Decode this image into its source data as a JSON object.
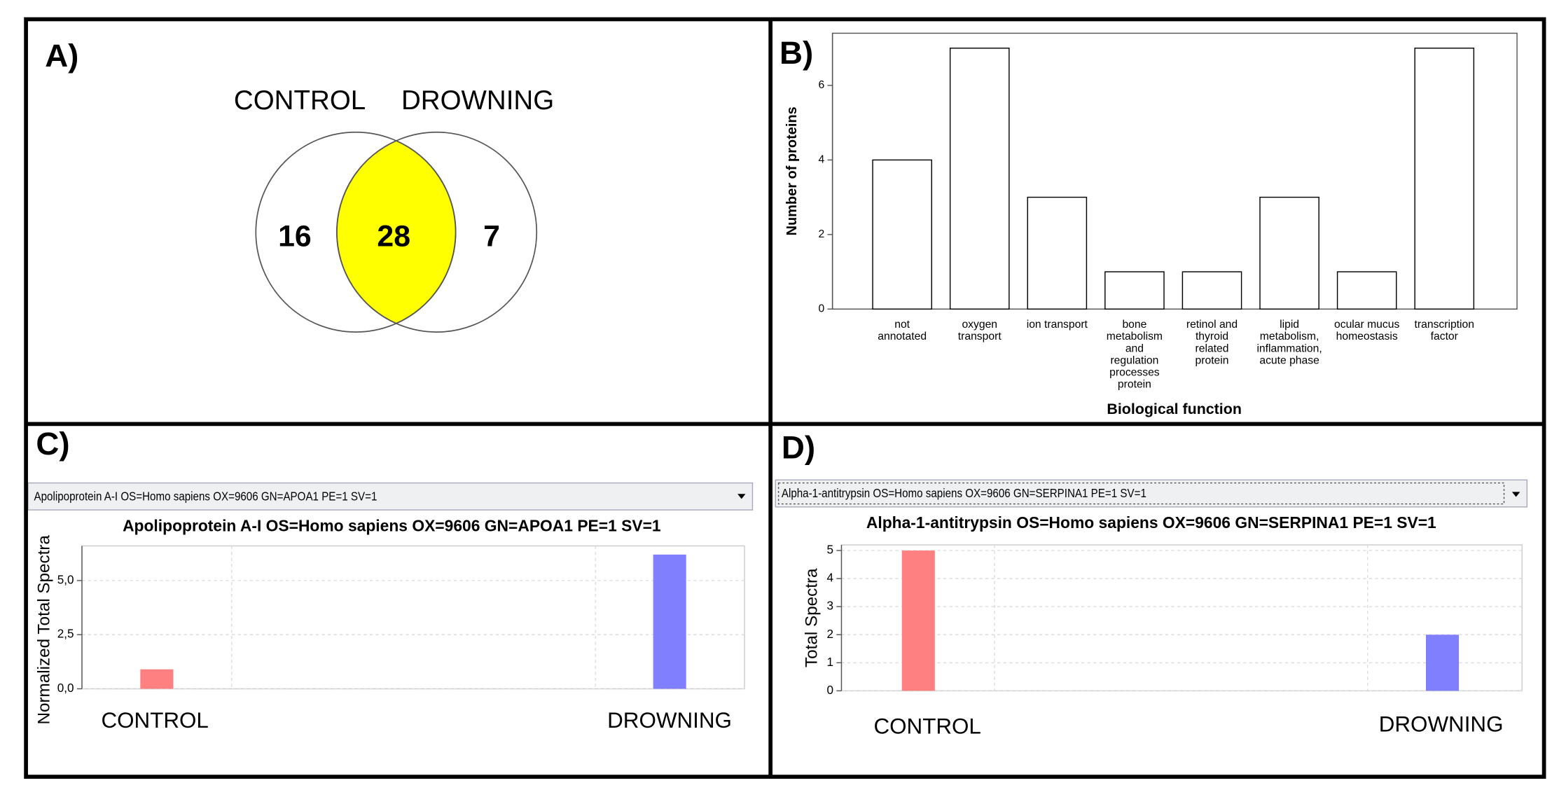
{
  "chart_data": [
    {
      "type": "venn",
      "label": "A)",
      "sets": [
        "CONTROL",
        "DROWNING"
      ],
      "values": [
        16,
        28,
        7
      ],
      "color": "#ffff00"
    },
    {
      "type": "bar",
      "label": "B)",
      "ylabel": "Number of proteins",
      "xlabel": "Biological function",
      "categories": [
        [
          "not",
          "annotated"
        ],
        [
          "oxygen",
          "transport"
        ],
        [
          "ion transport"
        ],
        [
          "bone",
          "metabolism",
          "and",
          "regulation",
          "processes",
          "protein"
        ],
        [
          "retinol and",
          "thyroid",
          "related",
          "protein"
        ],
        [
          "lipid",
          "metabolism,",
          "inflammation,",
          "acute phase"
        ],
        [
          "ocular mucus",
          "homeostasis"
        ],
        [
          "transcription",
          "factor"
        ]
      ],
      "values": [
        4,
        7,
        3,
        1,
        1,
        3,
        1,
        7
      ],
      "color": "#ffffff",
      "ylim": [
        0,
        7.4
      ],
      "yticks": [
        0,
        2,
        4,
        6
      ],
      "grid": false
    },
    {
      "type": "bar",
      "label": "C)",
      "selector": "Apolipoprotein A-I OS=Homo sapiens OX=9606 GN=APOA1 PE=1 SV=1",
      "title": "Apolipoprotein A-I OS=Homo sapiens OX=9606 GN=APOA1 PE=1 SV=1",
      "ylabel": "Normalized Total Spectra",
      "categories": [
        "CONTROL",
        "DROWNING"
      ],
      "values": [
        0.9,
        6.2
      ],
      "colors": [
        "#ff8080",
        "#8080ff"
      ],
      "ylim": [
        0,
        6.6
      ],
      "yticks": [
        {
          "value": 0,
          "label": "0,0"
        },
        {
          "value": 2.5,
          "label": "2,5"
        },
        {
          "value": 5,
          "label": "5,0"
        }
      ],
      "grid": true
    },
    {
      "type": "bar",
      "label": "D)",
      "selector": "Alpha-1-antitrypsin OS=Homo sapiens OX=9606 GN=SERPINA1 PE=1 SV=1",
      "title": "Alpha-1-antitrypsin OS=Homo sapiens OX=9606 GN=SERPINA1 PE=1 SV=1",
      "ylabel": "Total Spectra",
      "categories": [
        "CONTROL",
        "DROWNING"
      ],
      "values": [
        5,
        2
      ],
      "colors": [
        "#ff8080",
        "#8080ff"
      ],
      "ylim": [
        0,
        5.2
      ],
      "yticks": [
        0,
        1,
        2,
        3,
        4,
        5
      ],
      "grid": true
    }
  ]
}
